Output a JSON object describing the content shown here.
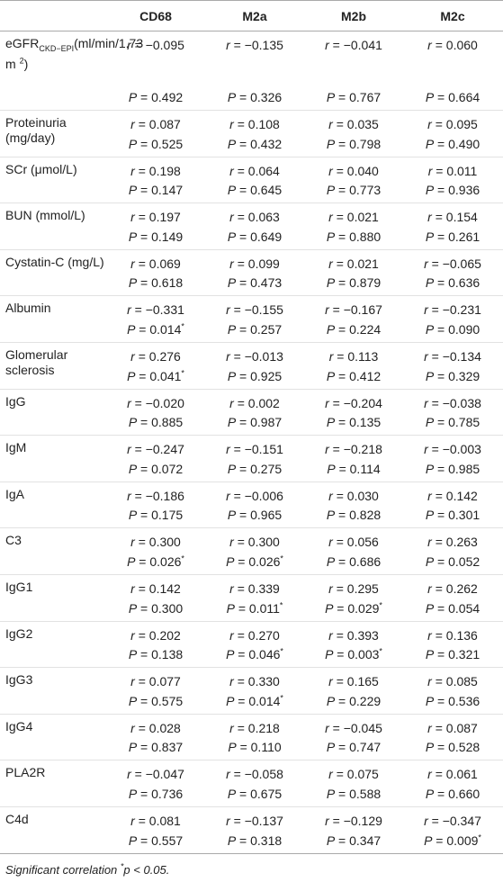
{
  "table": {
    "header": [
      "CD68",
      "M2a",
      "M2b",
      "M2c"
    ],
    "rows": [
      {
        "label": {
          "main": "eGFR",
          "sub": "CKD−EPI",
          "unit": "(ml/min/1.73 m",
          "sup": "2",
          "close": ")"
        },
        "r": [
          "r = −0.095",
          "r = −0.135",
          "r = −0.041",
          "r = 0.060"
        ],
        "p": [
          "P = 0.492",
          "P = 0.326",
          "P = 0.767",
          "P = 0.664"
        ]
      },
      {
        "label": "Proteinuria (mg/day)",
        "r": [
          "r = 0.087",
          "r = 0.108",
          "r = 0.035",
          "r = 0.095"
        ],
        "p": [
          "P = 0.525",
          "P = 0.432",
          "P = 0.798",
          "P = 0.490"
        ]
      },
      {
        "label": "SCr (μmol/L)",
        "r": [
          "r = 0.198",
          "r = 0.064",
          "r = 0.040",
          "r = 0.011"
        ],
        "p": [
          "P = 0.147",
          "P = 0.645",
          "P = 0.773",
          "P = 0.936"
        ]
      },
      {
        "label": "BUN (mmol/L)",
        "r": [
          "r = 0.197",
          "r = 0.063",
          "r = 0.021",
          "r = 0.154"
        ],
        "p": [
          "P = 0.149",
          "P = 0.649",
          "P = 0.880",
          "P = 0.261"
        ]
      },
      {
        "label": "Cystatin-C (mg/L)",
        "r": [
          "r = 0.069",
          "r = 0.099",
          "r = 0.021",
          "r = −0.065"
        ],
        "p": [
          "P = 0.618",
          "P = 0.473",
          "P = 0.879",
          "P = 0.636"
        ]
      },
      {
        "label": "Albumin",
        "r": [
          "r = −0.331",
          "r = −0.155",
          "r = −0.167",
          "r = −0.231"
        ],
        "p": [
          "P = 0.014*",
          "P = 0.257",
          "P = 0.224",
          "P = 0.090"
        ]
      },
      {
        "label": "Glomerular sclerosis",
        "r": [
          "r = 0.276",
          "r = −0.013",
          "r = 0.113",
          "r = −0.134"
        ],
        "p": [
          "P = 0.041*",
          "P = 0.925",
          "P = 0.412",
          "P = 0.329"
        ]
      },
      {
        "label": "IgG",
        "r": [
          "r = −0.020",
          "r = 0.002",
          "r = −0.204",
          "r = −0.038"
        ],
        "p": [
          "P = 0.885",
          "P = 0.987",
          "P = 0.135",
          "P = 0.785"
        ]
      },
      {
        "label": "IgM",
        "r": [
          "r = −0.247",
          "r = −0.151",
          "r = −0.218",
          "r = −0.003"
        ],
        "p": [
          "P = 0.072",
          "P = 0.275",
          "P = 0.114",
          "P = 0.985"
        ]
      },
      {
        "label": "IgA",
        "r": [
          "r = −0.186",
          "r = −0.006",
          "r = 0.030",
          "r = 0.142"
        ],
        "p": [
          "P = 0.175",
          "P = 0.965",
          "P = 0.828",
          "P = 0.301"
        ]
      },
      {
        "label": "C3",
        "r": [
          "r = 0.300",
          "r = 0.300",
          "r = 0.056",
          "r = 0.263"
        ],
        "p": [
          "P = 0.026*",
          "P = 0.026*",
          "P = 0.686",
          "P = 0.052"
        ]
      },
      {
        "label": "IgG1",
        "r": [
          "r = 0.142",
          "r = 0.339",
          "r = 0.295",
          "r = 0.262"
        ],
        "p": [
          "P = 0.300",
          "P = 0.011*",
          "P = 0.029*",
          "P = 0.054"
        ]
      },
      {
        "label": "IgG2",
        "r": [
          "r = 0.202",
          "r = 0.270",
          "r = 0.393",
          "r = 0.136"
        ],
        "p": [
          "P = 0.138",
          "P = 0.046*",
          "P = 0.003*",
          "P = 0.321"
        ]
      },
      {
        "label": "IgG3",
        "r": [
          "r = 0.077",
          "r = 0.330",
          "r = 0.165",
          "r = 0.085"
        ],
        "p": [
          "P = 0.575",
          "P = 0.014*",
          "P = 0.229",
          "P = 0.536"
        ]
      },
      {
        "label": "IgG4",
        "r": [
          "r = 0.028",
          "r = 0.218",
          "r = −0.045",
          "r = 0.087"
        ],
        "p": [
          "P = 0.837",
          "P = 0.110",
          "P = 0.747",
          "P = 0.528"
        ]
      },
      {
        "label": "PLA2R",
        "r": [
          "r = −0.047",
          "r = −0.058",
          "r = 0.075",
          "r = 0.061"
        ],
        "p": [
          "P = 0.736",
          "P = 0.675",
          "P = 0.588",
          "P = 0.660"
        ]
      },
      {
        "label": "C4d",
        "r": [
          "r = 0.081",
          "r = −0.137",
          "r = −0.129",
          "r = −0.347"
        ],
        "p": [
          "P = 0.557",
          "P = 0.318",
          "P = 0.347",
          "P = 0.009*"
        ]
      }
    ],
    "footnote": "Significant correlation *p < 0.05."
  }
}
